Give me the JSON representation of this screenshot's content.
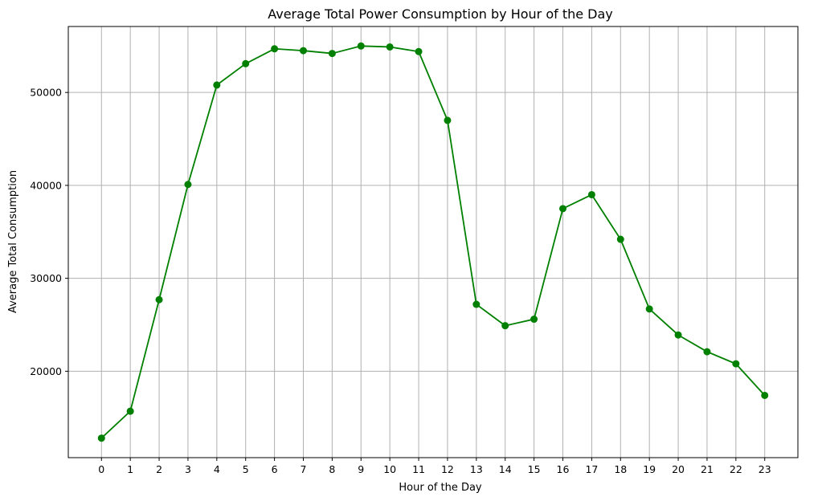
{
  "chart_data": {
    "type": "line",
    "title": "Average Total Power Consumption by Hour of the Day",
    "xlabel": "Hour of the Day",
    "ylabel": "Average Total Consumption",
    "x": [
      0,
      1,
      2,
      3,
      4,
      5,
      6,
      7,
      8,
      9,
      10,
      11,
      12,
      13,
      14,
      15,
      16,
      17,
      18,
      19,
      20,
      21,
      22,
      23
    ],
    "x_tick_labels": [
      "0",
      "1",
      "2",
      "3",
      "4",
      "5",
      "6",
      "7",
      "8",
      "9",
      "10",
      "11",
      "12",
      "13",
      "14",
      "15",
      "16",
      "17",
      "18",
      "19",
      "20",
      "21",
      "22",
      "23"
    ],
    "y_ticks": [
      20000,
      30000,
      40000,
      50000
    ],
    "y_tick_labels": [
      "20000",
      "30000",
      "40000",
      "50000"
    ],
    "series": [
      {
        "values": [
          12800,
          15700,
          27700,
          40100,
          50800,
          53100,
          54700,
          54500,
          54200,
          55000,
          54900,
          54400,
          47000,
          27200,
          24900,
          25600,
          37500,
          39000,
          34200,
          26700,
          23900,
          22100,
          20800,
          17400
        ],
        "color": "#008000",
        "marker": "circle"
      }
    ],
    "xlim": [
      -1.15,
      24.15
    ],
    "ylim": [
      10700,
      57100
    ],
    "grid": true,
    "grid_color": "#b0b0b0"
  }
}
